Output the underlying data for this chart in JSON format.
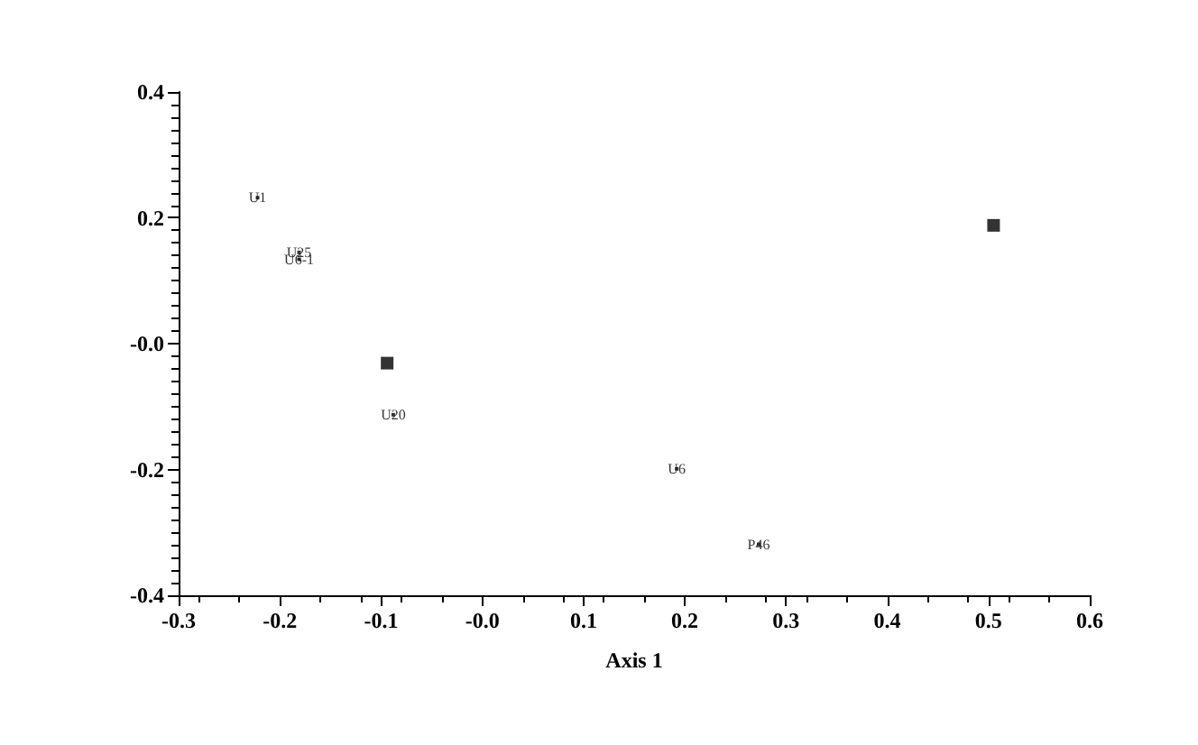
{
  "chart_data": {
    "type": "scatter",
    "xlabel": "Axis 1",
    "series": [
      {
        "color": "#000000",
        "marker": "square",
        "x": [
          -0.222,
          -0.181,
          -0.181,
          -0.088,
          0.192,
          0.273
        ],
        "values": [
          0.232,
          0.145,
          0.134,
          -0.113,
          -0.199,
          -0.319
        ],
        "value_labels": [
          "U1",
          "U25",
          "U6-1",
          "U20",
          "U6",
          "P46"
        ]
      },
      {
        "color": "#000000",
        "marker": "square",
        "x": [
          -0.094,
          0.505
        ],
        "values": [
          -0.031,
          0.188
        ]
      }
    ],
    "xlim": [
      -0.3,
      0.6
    ],
    "xticks": [
      -0.3,
      -0.2,
      -0.1,
      {
        "value": 0,
        "label": "-0.0"
      },
      0.1,
      0.2,
      0.3,
      0.4,
      0.5,
      0.6
    ],
    "ylim": [
      -0.4,
      0.4
    ],
    "yticks": [
      -0.4,
      -0.2,
      {
        "value": 0,
        "label": "-0.0"
      },
      0.2,
      0.4
    ],
    "grid": false
  }
}
